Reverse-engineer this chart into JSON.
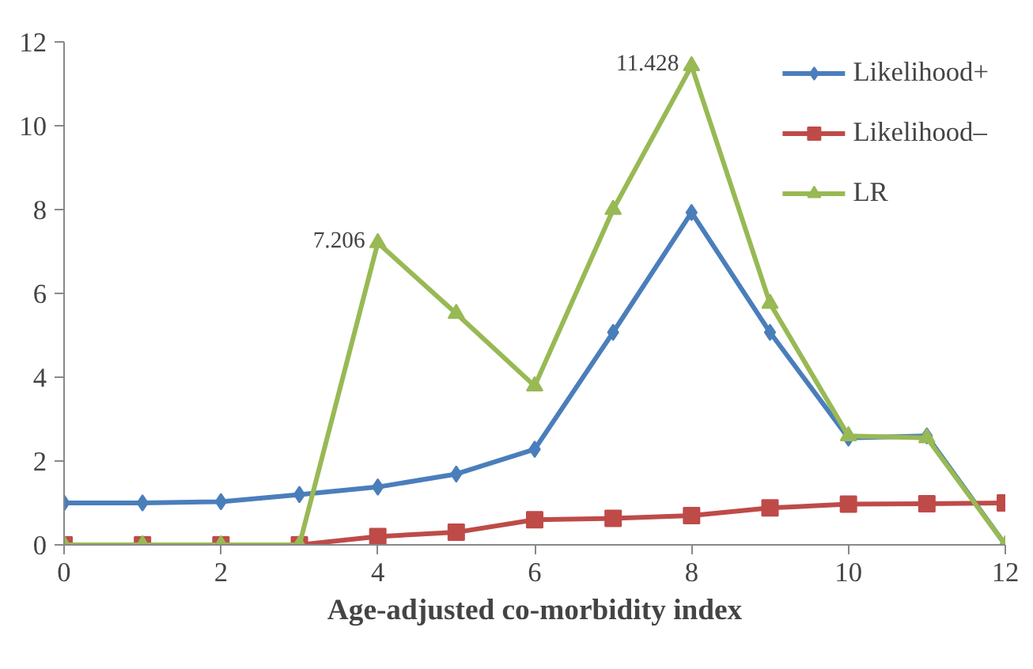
{
  "chart_data": {
    "type": "line",
    "xlabel": "Age-adjusted co-morbidity index",
    "x": [
      0,
      1,
      2,
      3,
      4,
      5,
      6,
      7,
      8,
      9,
      10,
      11,
      12
    ],
    "series": [
      {
        "name": "Likelihood+",
        "color": "#4a7ebb",
        "marker": "diamond",
        "values": [
          1.0,
          1.0,
          1.03,
          1.2,
          1.38,
          1.69,
          2.28,
          5.07,
          7.93,
          5.07,
          2.55,
          2.6,
          0
        ]
      },
      {
        "name": "Likelihood–",
        "color": "#be4b48",
        "marker": "square",
        "values": [
          0,
          0,
          0,
          0,
          0.2,
          0.3,
          0.6,
          0.63,
          0.7,
          0.88,
          0.97,
          0.98,
          1.0
        ]
      },
      {
        "name": "LR",
        "color": "#98b954",
        "marker": "triangle",
        "values": [
          0,
          0,
          0,
          0,
          7.206,
          5.52,
          3.79,
          8.0,
          11.428,
          5.76,
          2.6,
          2.55,
          0
        ]
      }
    ],
    "annotations": [
      {
        "text": "7.206",
        "x": 4,
        "y": 7.206
      },
      {
        "text": "11.428",
        "x": 8,
        "y": 11.428
      }
    ],
    "xlim": [
      0,
      12
    ],
    "ylim": [
      0,
      12
    ],
    "xticks": [
      0,
      2,
      4,
      6,
      8,
      10,
      12
    ],
    "yticks": [
      0,
      2,
      4,
      6,
      8,
      10,
      12
    ],
    "grid": false,
    "legend": "top right"
  }
}
